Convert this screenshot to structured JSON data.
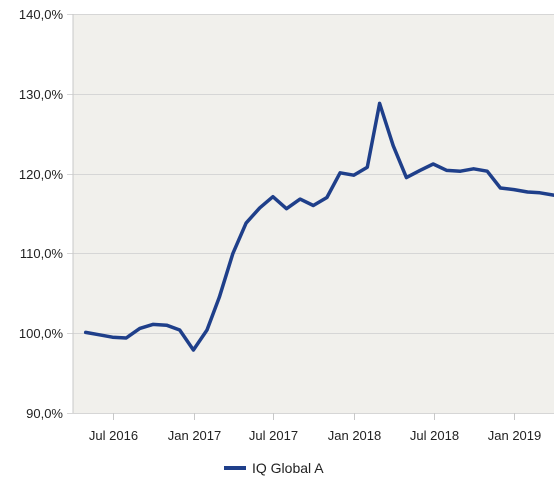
{
  "chart_data": {
    "type": "line",
    "title": "",
    "xlabel": "",
    "ylabel": "",
    "ylim": [
      90,
      140
    ],
    "y_ticks": [
      {
        "value": 90,
        "label": "90,0%"
      },
      {
        "value": 100,
        "label": "100,0%"
      },
      {
        "value": 110,
        "label": "110,0%"
      },
      {
        "value": 120,
        "label": "120,0%"
      },
      {
        "value": 130,
        "label": "130,0%"
      },
      {
        "value": 140,
        "label": "140,0%"
      }
    ],
    "x_ticks": [
      {
        "date": "2016-07-01",
        "label": "Jul 2016"
      },
      {
        "date": "2017-01-01",
        "label": "Jan 2017"
      },
      {
        "date": "2017-07-01",
        "label": "Jul 2017"
      },
      {
        "date": "2018-01-01",
        "label": "Jan 2018"
      },
      {
        "date": "2018-07-01",
        "label": "Jul 2018"
      },
      {
        "date": "2019-01-01",
        "label": "Jan 2019"
      }
    ],
    "x_range": [
      "2016-04-01",
      "2019-04-01"
    ],
    "grid": "horizontal",
    "plot_background": "#f1f0ec",
    "legend_position": "bottom",
    "series": [
      {
        "name": "IQ Global A",
        "color": "#1f3f8a",
        "points": [
          {
            "x": "2016-04-30",
            "y": 100.1
          },
          {
            "x": "2016-05-31",
            "y": 99.8
          },
          {
            "x": "2016-06-30",
            "y": 99.5
          },
          {
            "x": "2016-07-31",
            "y": 99.4
          },
          {
            "x": "2016-08-31",
            "y": 100.6
          },
          {
            "x": "2016-09-30",
            "y": 101.1
          },
          {
            "x": "2016-10-31",
            "y": 101.0
          },
          {
            "x": "2016-11-30",
            "y": 100.4
          },
          {
            "x": "2016-12-31",
            "y": 97.9
          },
          {
            "x": "2017-01-31",
            "y": 100.4
          },
          {
            "x": "2017-02-28",
            "y": 104.5
          },
          {
            "x": "2017-03-31",
            "y": 110.0
          },
          {
            "x": "2017-04-30",
            "y": 113.8
          },
          {
            "x": "2017-05-31",
            "y": 115.7
          },
          {
            "x": "2017-06-30",
            "y": 117.1
          },
          {
            "x": "2017-07-31",
            "y": 115.6
          },
          {
            "x": "2017-08-31",
            "y": 116.8
          },
          {
            "x": "2017-09-30",
            "y": 116.0
          },
          {
            "x": "2017-10-31",
            "y": 117.0
          },
          {
            "x": "2017-11-30",
            "y": 120.1
          },
          {
            "x": "2017-12-31",
            "y": 119.8
          },
          {
            "x": "2018-01-31",
            "y": 120.8
          },
          {
            "x": "2018-02-28",
            "y": 128.8
          },
          {
            "x": "2018-03-31",
            "y": 123.5
          },
          {
            "x": "2018-04-30",
            "y": 119.5
          },
          {
            "x": "2018-05-31",
            "y": 120.4
          },
          {
            "x": "2018-06-30",
            "y": 121.2
          },
          {
            "x": "2018-07-31",
            "y": 120.4
          },
          {
            "x": "2018-08-31",
            "y": 120.3
          },
          {
            "x": "2018-09-30",
            "y": 120.6
          },
          {
            "x": "2018-10-31",
            "y": 120.3
          },
          {
            "x": "2018-11-30",
            "y": 118.2
          },
          {
            "x": "2018-12-31",
            "y": 118.0
          },
          {
            "x": "2019-01-31",
            "y": 117.7
          },
          {
            "x": "2019-02-28",
            "y": 117.6
          },
          {
            "x": "2019-03-31",
            "y": 117.3
          },
          {
            "x": "2019-04-30",
            "y": 116.8
          }
        ]
      }
    ]
  }
}
